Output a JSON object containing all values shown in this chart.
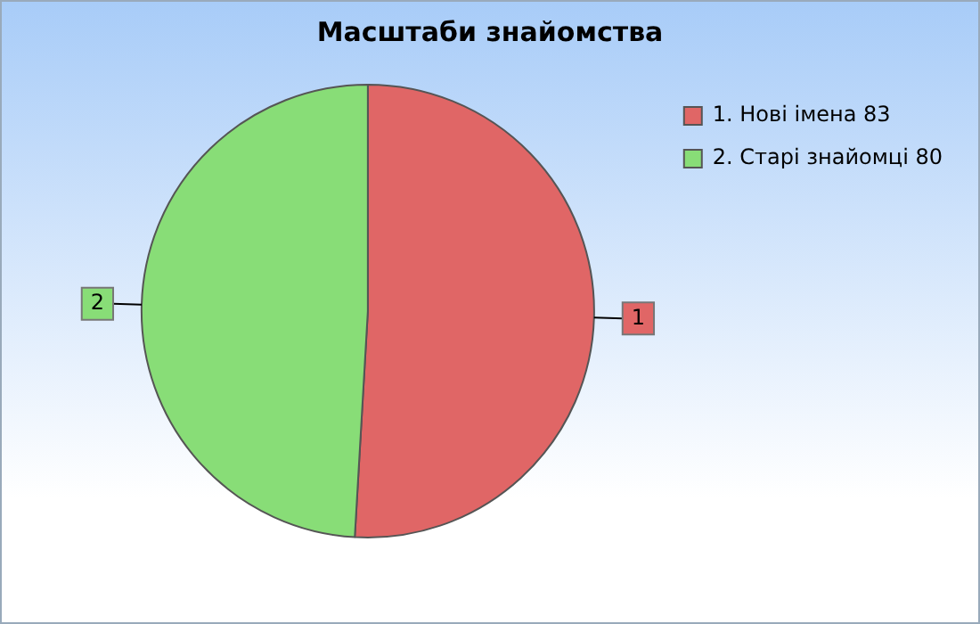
{
  "chart_data": {
    "type": "pie",
    "title": "Масштаби знайомства",
    "categories": [
      "1. Нові імена 83",
      "2. Старі знайомці 80"
    ],
    "values": [
      83,
      80
    ],
    "colors": [
      "#e06666",
      "#88dd77"
    ],
    "annotations": [
      {
        "text": "1",
        "x": "1. Нові імена 83"
      },
      {
        "text": "2",
        "x": "2. Старі знайомці 80"
      }
    ],
    "legend": "top right"
  }
}
